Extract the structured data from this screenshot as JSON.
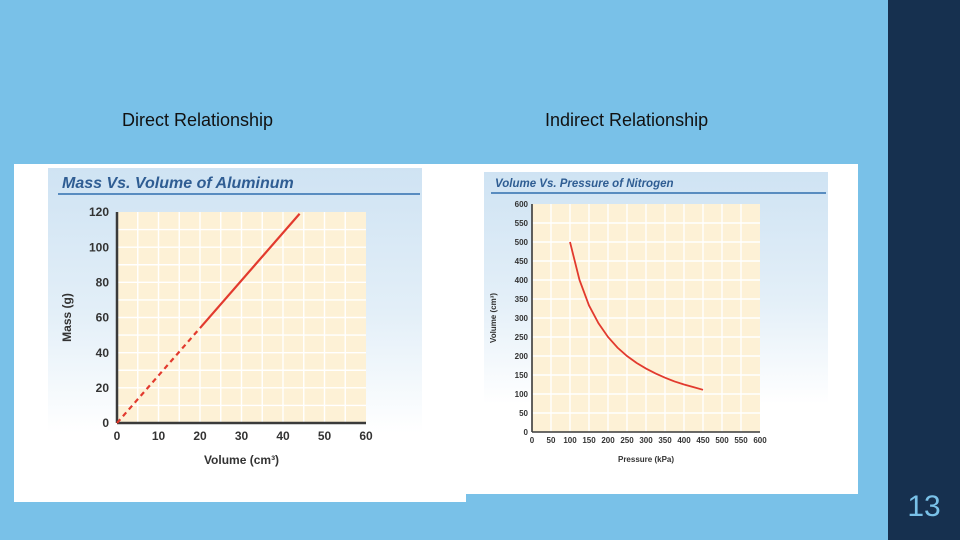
{
  "slide": {
    "caption_left": "Direct Relationship",
    "caption_right": "Indirect Relationship",
    "slide_number": "13"
  },
  "chart_data": [
    {
      "type": "line",
      "title": "Mass Vs. Volume of Aluminum",
      "xlabel": "Volume (cm³)",
      "ylabel": "Mass (g)",
      "xlim": [
        0,
        60
      ],
      "ylim": [
        0,
        120
      ],
      "xticks": [
        0,
        10,
        20,
        30,
        40,
        50,
        60
      ],
      "yticks": [
        0,
        20,
        40,
        60,
        80,
        100,
        120
      ],
      "x": [
        0,
        44
      ],
      "y": [
        0,
        119
      ],
      "line_segments": [
        {
          "style": "dashed",
          "x": [
            0,
            20
          ],
          "y": [
            0,
            54
          ]
        },
        {
          "style": "solid",
          "x": [
            20,
            44
          ],
          "y": [
            54,
            119
          ]
        }
      ],
      "color": "#e23a2e"
    },
    {
      "type": "line",
      "title": "Volume Vs. Pressure of Nitrogen",
      "xlabel": "Pressure (kPa)",
      "ylabel": "Volume (cm³)",
      "xlim": [
        0,
        600
      ],
      "ylim": [
        0,
        600
      ],
      "xticks": [
        0,
        50,
        100,
        150,
        200,
        250,
        300,
        350,
        400,
        450,
        500,
        550,
        600
      ],
      "yticks": [
        0,
        50,
        100,
        150,
        200,
        250,
        300,
        350,
        400,
        450,
        500,
        550,
        600
      ],
      "x": [
        100,
        125,
        150,
        175,
        200,
        225,
        250,
        275,
        300,
        325,
        350,
        375,
        400,
        425,
        450
      ],
      "y": [
        500,
        400,
        333,
        286,
        250,
        222,
        200,
        182,
        167,
        154,
        143,
        133,
        125,
        118,
        111
      ],
      "color": "#e23a2e"
    }
  ]
}
